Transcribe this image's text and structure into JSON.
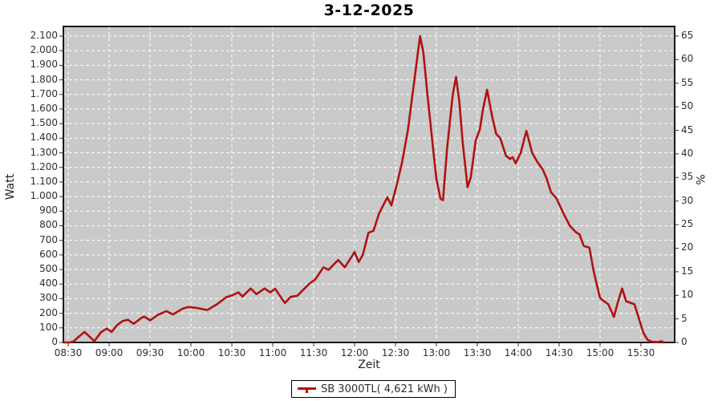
{
  "chart": {
    "title": "3-12-2025",
    "x_axis_label": "Zeit",
    "y_left_label": "Watt",
    "y_right_label": "%"
  },
  "legend": {
    "label": "SB 3000TL( 4,621 kWh )"
  },
  "colors": {
    "line": "#b01212",
    "plot_bg": "#c9c9c9",
    "grid": "#ffffff",
    "border": "#1a1a1a",
    "tick": "#333333",
    "text": "#2e2e2e"
  },
  "axes": {
    "x": {
      "tick_labels": [
        "08:30",
        "09:00",
        "09:30",
        "10:00",
        "10:30",
        "11:00",
        "11:30",
        "12:00",
        "12:30",
        "13:00",
        "13:30",
        "14:00",
        "14:30",
        "15:00",
        "15:30"
      ],
      "first_tick_hour": 8.5,
      "tick_step_hours": 0.5
    },
    "y_left": {
      "tick_labels": [
        "0",
        "100",
        "200",
        "300",
        "400",
        "500",
        "600",
        "700",
        "800",
        "900",
        "1.000",
        "1.100",
        "1.200",
        "1.300",
        "1.400",
        "1.500",
        "1.600",
        "1.700",
        "1.800",
        "1.900",
        "2.000",
        "2.100"
      ],
      "tick_step_watt": 100,
      "max_watt": 2100
    },
    "y_right": {
      "tick_labels": [
        "0",
        "5",
        "10",
        "15",
        "20",
        "25",
        "30",
        "35",
        "40",
        "45",
        "50",
        "55",
        "60",
        "65"
      ],
      "tick_step_percent": 5,
      "max_percent": 65
    }
  },
  "chart_data": {
    "type": "line",
    "title": "3-12-2025",
    "xlabel": "Zeit",
    "ylabel_left": "Watt",
    "ylabel_right": "%",
    "x_tick_labels": [
      "08:30",
      "09:00",
      "09:30",
      "10:00",
      "10:30",
      "11:00",
      "11:30",
      "12:00",
      "12:30",
      "13:00",
      "13:30",
      "14:00",
      "14:30",
      "15:00",
      "15:30"
    ],
    "xlim_hours": [
      8.44,
      15.91
    ],
    "ylim_left": [
      0,
      2165
    ],
    "ylim_right": [
      0,
      65
    ],
    "grid": true,
    "plot_background": "gray",
    "legend_position": "bottom-center",
    "series": [
      {
        "name": "SB 3000TL( 4,621 kWh )",
        "color": "#b01212",
        "x_hours": [
          8.45,
          8.52,
          8.57,
          8.63,
          8.7,
          8.77,
          8.82,
          8.9,
          8.97,
          9.03,
          9.1,
          9.17,
          9.23,
          9.3,
          9.4,
          9.43,
          9.5,
          9.6,
          9.7,
          9.78,
          9.9,
          9.97,
          10.07,
          10.2,
          10.32,
          10.43,
          10.5,
          10.58,
          10.63,
          10.73,
          10.8,
          10.9,
          10.97,
          11.03,
          11.12,
          11.15,
          11.22,
          11.3,
          11.4,
          11.45,
          11.52,
          11.62,
          11.68,
          11.8,
          11.88,
          12.0,
          12.05,
          12.1,
          12.17,
          12.23,
          12.3,
          12.4,
          12.45,
          12.52,
          12.58,
          12.65,
          12.72,
          12.8,
          12.84,
          12.89,
          12.95,
          13.0,
          13.05,
          13.08,
          13.13,
          13.2,
          13.24,
          13.28,
          13.32,
          13.38,
          13.42,
          13.48,
          13.53,
          13.57,
          13.62,
          13.68,
          13.73,
          13.78,
          13.85,
          13.9,
          13.93,
          13.97,
          14.03,
          14.1,
          14.17,
          14.23,
          14.3,
          14.35,
          14.4,
          14.47,
          14.55,
          14.63,
          14.7,
          14.75,
          14.8,
          14.87,
          14.92,
          14.97,
          15.0,
          15.05,
          15.1,
          15.17,
          15.22,
          15.27,
          15.32,
          15.37,
          15.42,
          15.48,
          15.53,
          15.58,
          15.63,
          15.7,
          15.75,
          15.78
        ],
        "watts": [
          0,
          0,
          8,
          40,
          72,
          35,
          8,
          70,
          95,
          72,
          120,
          148,
          155,
          128,
          170,
          177,
          152,
          190,
          215,
          192,
          232,
          243,
          237,
          222,
          262,
          310,
          322,
          343,
          315,
          370,
          331,
          370,
          343,
          368,
          293,
          271,
          313,
          320,
          376,
          404,
          432,
          515,
          498,
          565,
          515,
          620,
          552,
          600,
          752,
          765,
          885,
          995,
          940,
          1090,
          1235,
          1450,
          1750,
          2100,
          1990,
          1700,
          1380,
          1120,
          985,
          975,
          1330,
          1700,
          1820,
          1650,
          1380,
          1065,
          1130,
          1385,
          1460,
          1600,
          1732,
          1550,
          1430,
          1400,
          1280,
          1258,
          1270,
          1228,
          1300,
          1450,
          1300,
          1240,
          1185,
          1120,
          1030,
          985,
          888,
          800,
          758,
          740,
          662,
          650,
          495,
          375,
          305,
          282,
          262,
          175,
          280,
          370,
          282,
          272,
          262,
          155,
          65,
          18,
          5,
          2,
          8,
          0
        ]
      }
    ]
  }
}
